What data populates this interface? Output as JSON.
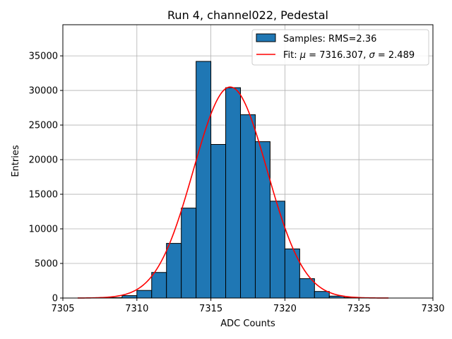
{
  "chart_data": {
    "type": "bar",
    "title": "Run 4, channel022, Pedestal",
    "xlabel": "ADC Counts",
    "ylabel": "Entries",
    "xlim": [
      7305,
      7330
    ],
    "ylim": [
      0,
      39500
    ],
    "xticks": [
      7305,
      7310,
      7315,
      7320,
      7325,
      7330
    ],
    "yticks": [
      0,
      5000,
      10000,
      15000,
      20000,
      25000,
      30000,
      35000
    ],
    "grid": true,
    "legend_position": "top-right",
    "bin_width": 1,
    "histogram": {
      "name": "Samples: RMS=2.36",
      "color": "#1f77b4",
      "edgecolor": "#000000",
      "bins": [
        {
          "start": 7308,
          "value": 60
        },
        {
          "start": 7309,
          "value": 350
        },
        {
          "start": 7310,
          "value": 1100
        },
        {
          "start": 7311,
          "value": 3700
        },
        {
          "start": 7312,
          "value": 7900
        },
        {
          "start": 7313,
          "value": 13000
        },
        {
          "start": 7314,
          "value": 34200
        },
        {
          "start": 7315,
          "value": 22200
        },
        {
          "start": 7316,
          "value": 30400
        },
        {
          "start": 7317,
          "value": 26500
        },
        {
          "start": 7318,
          "value": 22600
        },
        {
          "start": 7319,
          "value": 14000
        },
        {
          "start": 7320,
          "value": 7100
        },
        {
          "start": 7321,
          "value": 2800
        },
        {
          "start": 7322,
          "value": 950
        },
        {
          "start": 7323,
          "value": 280
        },
        {
          "start": 7324,
          "value": 70
        }
      ]
    },
    "fit": {
      "name": "Fit: μ = 7316.307, σ = 2.489",
      "label_prefix": "Fit: ",
      "mu_symbol": "μ",
      "mu_text": " = 7316.307, ",
      "sigma_symbol": "σ",
      "sigma_text": " = 2.489",
      "color": "#ff0000",
      "mu": 7316.307,
      "sigma": 2.489,
      "amplitude": 30500,
      "x_range": [
        7306,
        7327
      ]
    }
  }
}
